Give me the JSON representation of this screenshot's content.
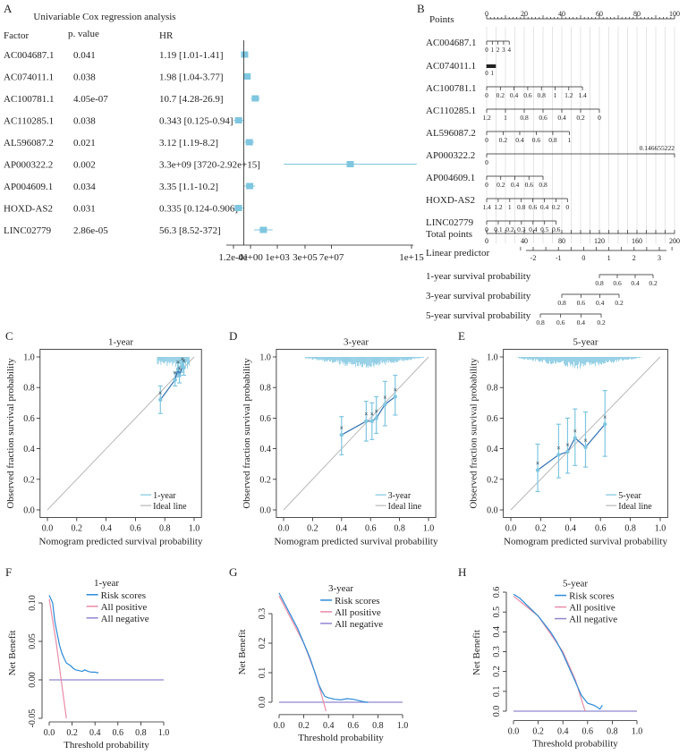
{
  "colors": {
    "marker": "#7fc6e0",
    "line": "#2f6fb3",
    "ideal": "#b8b8b8",
    "risk": "#2d8bd6",
    "allpos": "#e98ca7",
    "allneg": "#8f86d0",
    "axis": "#222222"
  },
  "panels": {
    "A": "A",
    "B": "B",
    "C": "C",
    "D": "D",
    "E": "E",
    "F": "F",
    "G": "G",
    "H": "H"
  },
  "chart_data": [
    {
      "id": "A",
      "type": "forest",
      "title": "Univariable Cox regression analysis",
      "headers": {
        "factor": "Factor",
        "p": "p. value",
        "hr": "HR"
      },
      "rows": [
        {
          "factor": "AC004687.1",
          "p": "0.041",
          "hr_text": "1.19 [1.01-1.41]",
          "hr": 1.19,
          "lo": 1.01,
          "hi": 1.41
        },
        {
          "factor": "AC074011.1",
          "p": "0.038",
          "hr_text": "1.98 [1.04-3.77]",
          "hr": 1.98,
          "lo": 1.04,
          "hi": 3.77
        },
        {
          "factor": "AC100781.1",
          "p": "4.05e-07",
          "hr_text": "10.7 [4.28-26.9]",
          "hr": 10.7,
          "lo": 4.28,
          "hi": 26.9
        },
        {
          "factor": "AC110285.1",
          "p": "0.038",
          "hr_text": "0.343 [0.125-0.94]",
          "hr": 0.343,
          "lo": 0.125,
          "hi": 0.94
        },
        {
          "factor": "AL596087.2",
          "p": "0.021",
          "hr_text": "3.12 [1.19-8.2]",
          "hr": 3.12,
          "lo": 1.19,
          "hi": 8.2
        },
        {
          "factor": "AP000322.2",
          "p": "0.002",
          "hr_text": "3.3e+09 [3720-2.92e+15]",
          "hr": 3300000000.0,
          "lo": 3720,
          "hi": 2920000000000000.0
        },
        {
          "factor": "AP004609.1",
          "p": "0.034",
          "hr_text": "3.35 [1.1-10.2]",
          "hr": 3.35,
          "lo": 1.1,
          "hi": 10.2
        },
        {
          "factor": "HOXD-AS2",
          "p": "0.031",
          "hr_text": "0.335 [0.124-0.906]",
          "hr": 0.335,
          "lo": 0.124,
          "hi": 0.906
        },
        {
          "factor": "LINC02779",
          "p": "2.86e-05",
          "hr_text": "56.3 [8.52-372]",
          "hr": 56.3,
          "lo": 8.52,
          "hi": 372
        }
      ],
      "xscale": "log",
      "xlim": [
        0.12,
        1000000000000000.0
      ],
      "ref": 1,
      "ticks": [
        {
          "v": 0.12,
          "label": "1.2e-01"
        },
        {
          "v": 4,
          "label": "4e+00"
        },
        {
          "v": 1000,
          "label": "1e+03"
        },
        {
          "v": 300000,
          "label": "3e+05"
        },
        {
          "v": 70000000,
          "label": "7e+07"
        },
        {
          "v": 1000000000000000.0,
          "label": "1e+15"
        }
      ]
    },
    {
      "id": "B",
      "type": "nomogram",
      "points": {
        "label": "Points",
        "min": 0,
        "max": 100,
        "labeled": [
          0,
          20,
          40,
          60,
          80,
          100
        ]
      },
      "variables": [
        {
          "name": "AC004687.1",
          "start": 0,
          "end": 12,
          "ticks": [
            "0",
            "1",
            "2",
            "3",
            "4"
          ]
        },
        {
          "name": "AC074011.1",
          "start": 0,
          "end": 3,
          "ticks": [
            "0",
            "1"
          ]
        },
        {
          "name": "AC100781.1",
          "start": 0,
          "end": 51,
          "ticks": [
            "0",
            "0.2",
            "0.4",
            "0.6",
            "0.8",
            "1",
            "1.2",
            "1.4"
          ]
        },
        {
          "name": "AC110285.1",
          "start": 0,
          "end": 60,
          "ticks": [
            "1.2",
            "1",
            "0.8",
            "0.6",
            "0.4",
            "0.2",
            "0"
          ]
        },
        {
          "name": "AL596087.2",
          "start": 0,
          "end": 44,
          "ticks": [
            "0",
            "0.2",
            "0.4",
            "0.6",
            "0.8",
            "1"
          ]
        },
        {
          "name": "AP000322.2",
          "start": 0,
          "end": 100,
          "ticks": [
            "0",
            "0.146655222"
          ]
        },
        {
          "name": "AP004609.1",
          "start": 0,
          "end": 30,
          "ticks": [
            "0",
            "0.2",
            "0.4",
            "0.6",
            "0.8"
          ]
        },
        {
          "name": "HOXD-AS2",
          "start": 0,
          "end": 43,
          "ticks": [
            "1.4",
            "1.2",
            "1",
            "0.8",
            "0.6",
            "0.4",
            "0.2",
            "0"
          ]
        },
        {
          "name": "LINC02779",
          "start": 0,
          "end": 37,
          "ticks": [
            "0",
            "0.1",
            "0.2",
            "0.3",
            "0.4",
            "0.5",
            "0.6"
          ]
        }
      ],
      "total": {
        "label": "Total points",
        "min": 0,
        "max": 200,
        "labeled": [
          0,
          40,
          80,
          120,
          160,
          200
        ]
      },
      "lp": {
        "label": "Linear predictor",
        "min": -2,
        "max": 3,
        "labeled": [
          "-2",
          "-1",
          "0",
          "1",
          "2",
          "3"
        ]
      },
      "surv": [
        {
          "label": "1-year survival probability",
          "ticks": [
            "0.8",
            "0.6",
            "0.4",
            "0.2"
          ]
        },
        {
          "label": "3-year survival probability",
          "ticks": [
            "0.8",
            "0.6",
            "0.4",
            "0.2"
          ]
        },
        {
          "label": "5-year survival probability",
          "ticks": [
            "0.8",
            "0.6",
            "0.4",
            "0.2"
          ]
        }
      ]
    },
    {
      "id": "C",
      "type": "calibration",
      "title": "1-year",
      "xlabel": "Nomogram predicted survival probability",
      "ylabel": "Observed fraction survival probability",
      "xlim": [
        0,
        1
      ],
      "ylim": [
        0,
        1
      ],
      "ticks": [
        "0.0",
        "0.2",
        "0.4",
        "0.6",
        "0.8",
        "1.0"
      ],
      "legend": [
        "1-year",
        "Ideal line"
      ],
      "points": [
        {
          "x": 0.77,
          "y": 0.72,
          "lo": 0.63,
          "hi": 0.81
        },
        {
          "x": 0.87,
          "y": 0.85,
          "lo": 0.81,
          "hi": 0.9
        },
        {
          "x": 0.89,
          "y": 0.92,
          "lo": 0.87,
          "hi": 0.96
        },
        {
          "x": 0.9,
          "y": 0.88,
          "lo": 0.83,
          "hi": 0.94
        },
        {
          "x": 0.92,
          "y": 0.94,
          "lo": 0.9,
          "hi": 0.98
        },
        {
          "x": 0.93,
          "y": 0.93,
          "lo": 0.88,
          "hi": 0.97
        }
      ]
    },
    {
      "id": "D",
      "type": "calibration",
      "title": "3-year",
      "xlabel": "Nomogram predicted survival probability",
      "ylabel": "Observed fraction survival probability",
      "xlim": [
        0,
        1
      ],
      "ylim": [
        0,
        1
      ],
      "ticks": [
        "0.0",
        "0.2",
        "0.4",
        "0.6",
        "0.8",
        "1.0"
      ],
      "legend": [
        "3-year",
        "Ideal line"
      ],
      "points": [
        {
          "x": 0.4,
          "y": 0.49,
          "lo": 0.36,
          "hi": 0.61
        },
        {
          "x": 0.57,
          "y": 0.58,
          "lo": 0.45,
          "hi": 0.71
        },
        {
          "x": 0.61,
          "y": 0.58,
          "lo": 0.46,
          "hi": 0.7
        },
        {
          "x": 0.64,
          "y": 0.6,
          "lo": 0.5,
          "hi": 0.74
        },
        {
          "x": 0.7,
          "y": 0.69,
          "lo": 0.55,
          "hi": 0.84
        },
        {
          "x": 0.77,
          "y": 0.74,
          "lo": 0.62,
          "hi": 0.88
        }
      ]
    },
    {
      "id": "E",
      "type": "calibration",
      "title": "5-year",
      "xlabel": "Nomogram predicted survival probability",
      "ylabel": "Observed fraction survival probability",
      "xlim": [
        0,
        1
      ],
      "ylim": [
        0,
        1
      ],
      "ticks": [
        "0.0",
        "0.2",
        "0.4",
        "0.6",
        "0.8",
        "1.0"
      ],
      "legend": [
        "5-year",
        "Ideal line"
      ],
      "points": [
        {
          "x": 0.18,
          "y": 0.26,
          "lo": 0.12,
          "hi": 0.43
        },
        {
          "x": 0.32,
          "y": 0.36,
          "lo": 0.21,
          "hi": 0.56
        },
        {
          "x": 0.38,
          "y": 0.38,
          "lo": 0.24,
          "hi": 0.6
        },
        {
          "x": 0.43,
          "y": 0.47,
          "lo": 0.29,
          "hi": 0.66
        },
        {
          "x": 0.5,
          "y": 0.41,
          "lo": 0.28,
          "hi": 0.64
        },
        {
          "x": 0.63,
          "y": 0.56,
          "lo": 0.35,
          "hi": 0.78
        }
      ]
    },
    {
      "id": "F",
      "type": "dca",
      "title": "1-year",
      "xlabel": "Threshold probability",
      "ylabel": "Net Benefit",
      "xlim": [
        0,
        1
      ],
      "ylim": [
        -0.05,
        0.12
      ],
      "xticks": [
        "0.0",
        "0.2",
        "0.4",
        "0.6",
        "0.8",
        "1.0"
      ],
      "yticks": [
        -0.05,
        0,
        0.05,
        0.1
      ],
      "yticklabels": [
        "-0.05",
        "0.00",
        "0.05",
        "0.10"
      ],
      "legend": [
        "Risk scores",
        "All positive",
        "All negative"
      ],
      "risk": [
        [
          0,
          0.11
        ],
        [
          0.03,
          0.1
        ],
        [
          0.05,
          0.075
        ],
        [
          0.07,
          0.06
        ],
        [
          0.09,
          0.045
        ],
        [
          0.11,
          0.035
        ],
        [
          0.13,
          0.028
        ],
        [
          0.15,
          0.022
        ],
        [
          0.17,
          0.02
        ],
        [
          0.19,
          0.018
        ],
        [
          0.21,
          0.015
        ],
        [
          0.23,
          0.013
        ],
        [
          0.26,
          0.012
        ],
        [
          0.29,
          0.011
        ],
        [
          0.31,
          0.013
        ],
        [
          0.34,
          0.011
        ],
        [
          0.37,
          0.01
        ],
        [
          0.4,
          0.01
        ],
        [
          0.43,
          0.009
        ]
      ],
      "allpos": [
        [
          0,
          0.105
        ],
        [
          0.06,
          0.05
        ],
        [
          0.1,
          0.005
        ],
        [
          0.15,
          -0.05
        ]
      ],
      "allneg": [
        [
          0,
          0
        ],
        [
          1,
          0
        ]
      ]
    },
    {
      "id": "G",
      "type": "dca",
      "title": "3-year",
      "xlabel": "Threshold probability",
      "ylabel": "Net Benefit",
      "xlim": [
        0,
        1
      ],
      "ylim": [
        -0.03,
        0.37
      ],
      "xticks": [
        "0.0",
        "0.2",
        "0.4",
        "0.6",
        "0.8",
        "1.0"
      ],
      "yticks": [
        0,
        0.1,
        0.2,
        0.3
      ],
      "yticklabels": [
        "0.0",
        "0.1",
        "0.2",
        "0.3"
      ],
      "legend": [
        "Risk scores",
        "All positive",
        "All negative"
      ],
      "risk": [
        [
          0,
          0.37
        ],
        [
          0.05,
          0.33
        ],
        [
          0.1,
          0.29
        ],
        [
          0.15,
          0.25
        ],
        [
          0.2,
          0.2
        ],
        [
          0.25,
          0.15
        ],
        [
          0.29,
          0.1
        ],
        [
          0.32,
          0.06
        ],
        [
          0.35,
          0.035
        ],
        [
          0.37,
          0.02
        ],
        [
          0.4,
          0.015
        ],
        [
          0.45,
          0.01
        ],
        [
          0.5,
          0.008
        ],
        [
          0.55,
          0.012
        ],
        [
          0.6,
          0.01
        ],
        [
          0.65,
          0.005
        ],
        [
          0.7,
          0.0
        ],
        [
          0.72,
          0.0
        ]
      ],
      "allpos": [
        [
          0,
          0.36
        ],
        [
          0.2,
          0.2
        ],
        [
          0.3,
          0.09
        ],
        [
          0.38,
          -0.03
        ]
      ],
      "allneg": [
        [
          0,
          0
        ],
        [
          1,
          0
        ]
      ]
    },
    {
      "id": "H",
      "type": "dca",
      "title": "5-year",
      "xlabel": "Threshold probability",
      "ylabel": "Net Benefit",
      "xlim": [
        0,
        1
      ],
      "ylim": [
        -0.03,
        0.62
      ],
      "xticks": [
        "0.0",
        "0.2",
        "0.4",
        "0.6",
        "0.8",
        "1.0"
      ],
      "yticks": [
        0,
        0.1,
        0.2,
        0.3,
        0.4,
        0.5,
        0.6
      ],
      "yticklabels": [
        "0.0",
        "0.1",
        "0.2",
        "0.3",
        "0.4",
        "0.5",
        "0.6"
      ],
      "legend": [
        "Risk scores",
        "All positive",
        "All negative"
      ],
      "risk": [
        [
          0,
          0.59
        ],
        [
          0.05,
          0.57
        ],
        [
          0.1,
          0.54
        ],
        [
          0.15,
          0.51
        ],
        [
          0.2,
          0.48
        ],
        [
          0.25,
          0.44
        ],
        [
          0.3,
          0.4
        ],
        [
          0.35,
          0.35
        ],
        [
          0.4,
          0.29
        ],
        [
          0.45,
          0.22
        ],
        [
          0.5,
          0.15
        ],
        [
          0.55,
          0.08
        ],
        [
          0.6,
          0.04
        ],
        [
          0.65,
          0.03
        ],
        [
          0.68,
          0.02
        ],
        [
          0.7,
          0.01
        ],
        [
          0.72,
          0.03
        ]
      ],
      "allpos": [
        [
          0,
          0.58
        ],
        [
          0.2,
          0.48
        ],
        [
          0.4,
          0.3
        ],
        [
          0.5,
          0.16
        ],
        [
          0.58,
          0.0
        ]
      ],
      "allneg": [
        [
          0,
          0
        ],
        [
          1,
          0
        ]
      ]
    }
  ]
}
